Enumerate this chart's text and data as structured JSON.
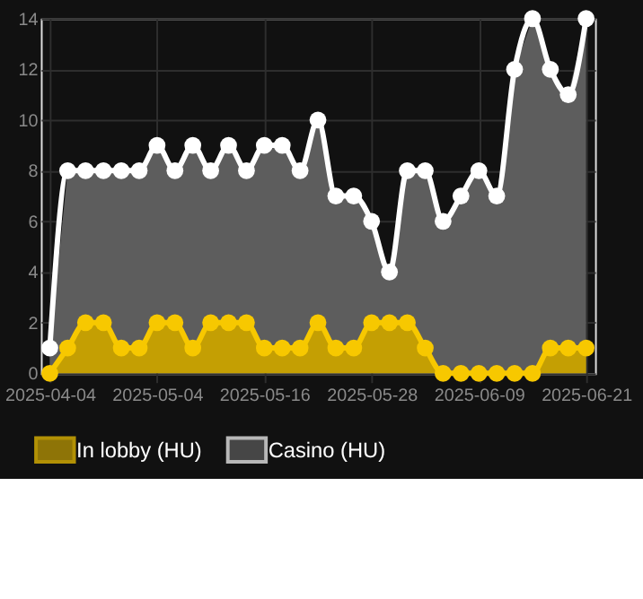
{
  "chart_data": {
    "type": "area",
    "categories": [
      "2025-04-04",
      null,
      null,
      null,
      null,
      null,
      "2025-05-04",
      null,
      null,
      null,
      null,
      null,
      "2025-05-16",
      null,
      null,
      null,
      null,
      null,
      "2025-05-28",
      null,
      null,
      null,
      null,
      null,
      "2025-06-09",
      null,
      null,
      null,
      null,
      null,
      "2025-06-21"
    ],
    "series": [
      {
        "name": "In lobby (HU)",
        "color": "#f7c800",
        "values": [
          0,
          1,
          2,
          2,
          1,
          1,
          2,
          2,
          1,
          2,
          2,
          2,
          1,
          1,
          1,
          2,
          1,
          1,
          2,
          2,
          2,
          1,
          0,
          0,
          0,
          0,
          0,
          0,
          1,
          1,
          1
        ]
      },
      {
        "name": "Casino (HU)",
        "color": "#ffffff",
        "values": [
          1,
          8,
          8,
          8,
          8,
          8,
          9,
          8,
          9,
          8,
          9,
          8,
          9,
          9,
          8,
          10,
          7,
          7,
          6,
          4,
          8,
          8,
          6,
          7,
          8,
          7,
          12,
          14,
          12,
          11,
          14
        ]
      }
    ],
    "ylim": [
      0,
      14
    ],
    "yticks": [
      0,
      2,
      4,
      6,
      8,
      10,
      12,
      14
    ],
    "grid": true,
    "legend": "bottom",
    "marker": "circle"
  }
}
